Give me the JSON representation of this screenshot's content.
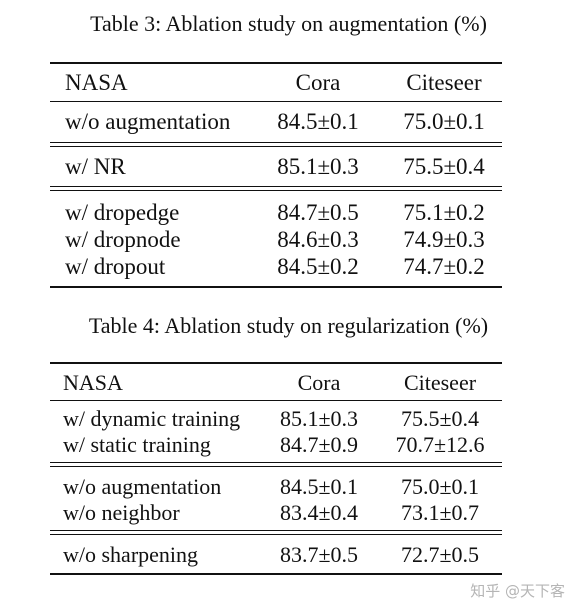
{
  "table3": {
    "caption": "Table 3: Ablation study on augmentation (%)",
    "header": {
      "label": "NASA",
      "cora": "Cora",
      "citeseer": "Citeseer"
    },
    "groups": [
      [
        {
          "label": "w/o augmentation",
          "cora": "84.5±0.1",
          "citeseer": "75.0±0.1"
        }
      ],
      [
        {
          "label": "w/ NR",
          "cora": "85.1±0.3",
          "citeseer": "75.5±0.4"
        }
      ],
      [
        {
          "label": "w/ dropedge",
          "cora": "84.7±0.5",
          "citeseer": "75.1±0.2"
        },
        {
          "label": "w/ dropnode",
          "cora": "84.6±0.3",
          "citeseer": "74.9±0.3"
        },
        {
          "label": "w/ dropout",
          "cora": "84.5±0.2",
          "citeseer": "74.7±0.2"
        }
      ]
    ]
  },
  "table4": {
    "caption": "Table 4: Ablation study on regularization (%)",
    "header": {
      "label": "NASA",
      "cora": "Cora",
      "citeseer": "Citeseer"
    },
    "groups": [
      [
        {
          "label": "w/ dynamic training",
          "cora": "85.1±0.3",
          "citeseer": "75.5±0.4"
        },
        {
          "label": "w/ static training",
          "cora": "84.7±0.9",
          "citeseer": "70.7±12.6"
        }
      ],
      [
        {
          "label": "w/o augmentation",
          "cora": "84.5±0.1",
          "citeseer": "75.0±0.1"
        },
        {
          "label": "w/o neighbor",
          "cora": "83.4±0.4",
          "citeseer": "73.1±0.7"
        }
      ],
      [
        {
          "label": "w/o sharpening",
          "cora": "83.7±0.5",
          "citeseer": "72.7±0.5"
        }
      ]
    ]
  },
  "watermark": "知乎 @天下客"
}
